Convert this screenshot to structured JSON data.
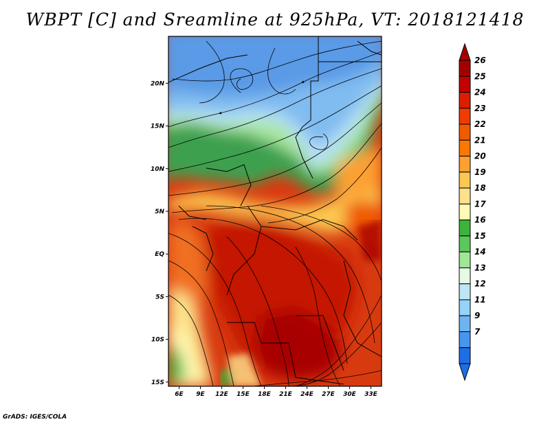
{
  "title": "WBPT [C] and Sreamline at 925hPa, VT: 2018121418",
  "footer": "GrADS: IGES/COLA",
  "map": {
    "lat_labels": [
      "20N",
      "15N",
      "10N",
      "5N",
      "EQ",
      "5S",
      "10S",
      "15S"
    ],
    "lat_values": [
      20,
      15,
      10,
      5,
      0,
      -5,
      -10,
      -15
    ],
    "lon_labels": [
      "6E",
      "9E",
      "12E",
      "15E",
      "18E",
      "21E",
      "24E",
      "27E",
      "30E",
      "33E"
    ],
    "lon_values": [
      6,
      9,
      12,
      15,
      18,
      21,
      24,
      27,
      30,
      33
    ],
    "lon_range": [
      4.5,
      34.5
    ],
    "lat_range": [
      -15.5,
      25.5
    ]
  },
  "colorbar": {
    "labels": [
      "26",
      "25",
      "24",
      "23",
      "22",
      "21",
      "20",
      "19",
      "18",
      "17",
      "16",
      "15",
      "14",
      "13",
      "12",
      "11",
      "9",
      "7"
    ],
    "colors": [
      "#a50000",
      "#c40000",
      "#dc1e00",
      "#f03c00",
      "#f05a00",
      "#fa7800",
      "#fca030",
      "#fcc850",
      "#fce28c",
      "#fffab4",
      "#3cb43c",
      "#5ac85a",
      "#a0e696",
      "#e6fae6",
      "#bee6f5",
      "#96d2fa",
      "#6eb4f0",
      "#4696f0",
      "#1e6ee6"
    ]
  }
}
